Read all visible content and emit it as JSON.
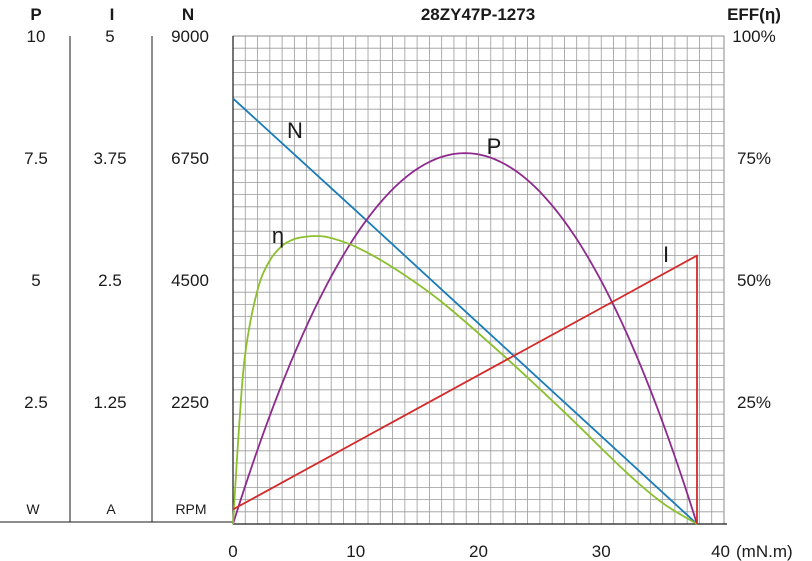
{
  "chart_data": {
    "type": "line",
    "title": "28ZY47P-1273",
    "x_axis": {
      "label": "(mN.m)",
      "range": [
        0,
        40
      ],
      "ticks": [
        0,
        10,
        20,
        30,
        40
      ],
      "tick_labels": [
        "0",
        "10",
        "20",
        "30",
        "40"
      ]
    },
    "left_axes": [
      {
        "name": "P",
        "unit": "W",
        "range": [
          0,
          10
        ],
        "ticks": [
          2.5,
          5,
          7.5,
          10
        ],
        "tick_labels": [
          "2.5",
          "5",
          "7.5",
          "10"
        ]
      },
      {
        "name": "I",
        "unit": "A",
        "range": [
          0,
          5
        ],
        "ticks": [
          1.25,
          2.5,
          3.75,
          5
        ],
        "tick_labels": [
          "1.25",
          "2.5",
          "3.75",
          "5"
        ]
      },
      {
        "name": "N",
        "unit": "RPM",
        "range": [
          0,
          9000
        ],
        "ticks": [
          2250,
          4500,
          6750,
          9000
        ],
        "tick_labels": [
          "2250",
          "4500",
          "6750",
          "9000"
        ]
      }
    ],
    "right_axis": {
      "name": "EFF(η)",
      "range": [
        0,
        100
      ],
      "ticks": [
        25,
        50,
        75,
        100
      ],
      "tick_labels": [
        "25%",
        "50%",
        "75%",
        "100%"
      ]
    },
    "grid": true,
    "series": [
      {
        "name": "N",
        "axis": "N",
        "color": "#1a7db8",
        "x": [
          0,
          10,
          20,
          25,
          30,
          37.8
        ],
        "y": [
          7850,
          5780,
          3700,
          2660,
          1620,
          0
        ]
      },
      {
        "name": "P",
        "axis": "P",
        "color": "#8e2a8e",
        "x": [
          0,
          4.7,
          9.5,
          14.2,
          18.9,
          23.6,
          28.4,
          33.1,
          37.8
        ],
        "y": [
          0,
          3.3,
          5.7,
          7.1,
          7.6,
          7.1,
          5.7,
          3.3,
          0
        ]
      },
      {
        "name": "η",
        "axis": "EFF",
        "color": "#8cbf2e",
        "x": [
          0,
          0.5,
          1,
          2,
          3,
          4,
          5,
          6,
          7,
          8,
          10,
          13,
          17,
          22,
          27,
          32,
          35,
          37.8
        ],
        "y": [
          0,
          20,
          35,
          48,
          54,
          57,
          58.4,
          58.9,
          59,
          58.6,
          56.8,
          52.6,
          45.5,
          34.6,
          22.9,
          10.7,
          4.3,
          0
        ]
      },
      {
        "name": "I",
        "axis": "I",
        "color": "#d42a2a",
        "x": [
          0,
          37.8,
          37.8
        ],
        "y": [
          0.15,
          2.75,
          0
        ]
      }
    ],
    "curve_labels": [
      "N",
      "P",
      "η",
      "I"
    ]
  }
}
